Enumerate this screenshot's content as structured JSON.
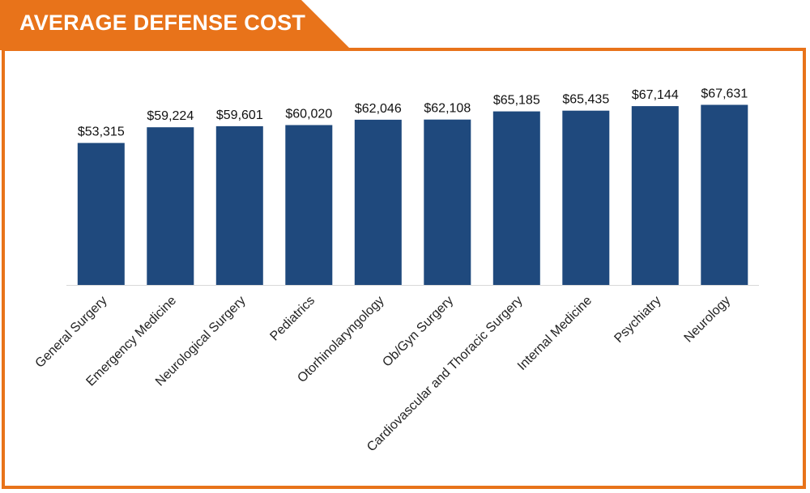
{
  "colors": {
    "accent": "#e8731a",
    "bar": "#1f497d",
    "axis": "#d9d9d9",
    "title_text": "#ffffff"
  },
  "chart_data": {
    "type": "bar",
    "title": "AVERAGE DEFENSE COST",
    "xlabel": "",
    "ylabel": "",
    "ylim": [
      0,
      69000
    ],
    "grid": false,
    "legend": "none",
    "categories": [
      "General Surgery",
      "Emergency Medicine",
      "Neurological Surgery",
      "Pediatrics",
      "Otorhinolaryngology",
      "Ob/Gyn Surgery",
      "Cardiovascular and Thoracic Surgery",
      "Internal Medicine",
      "Psychiatry",
      "Neurology"
    ],
    "values": [
      53315,
      59224,
      59601,
      60020,
      62046,
      62108,
      65185,
      65435,
      67144,
      67631
    ],
    "data_labels": [
      "$53,315",
      "$59,224",
      "$59,601",
      "$60,020",
      "$62,046",
      "$62,108",
      "$65,185",
      "$65,435",
      "$67,144",
      "$67,631"
    ]
  }
}
